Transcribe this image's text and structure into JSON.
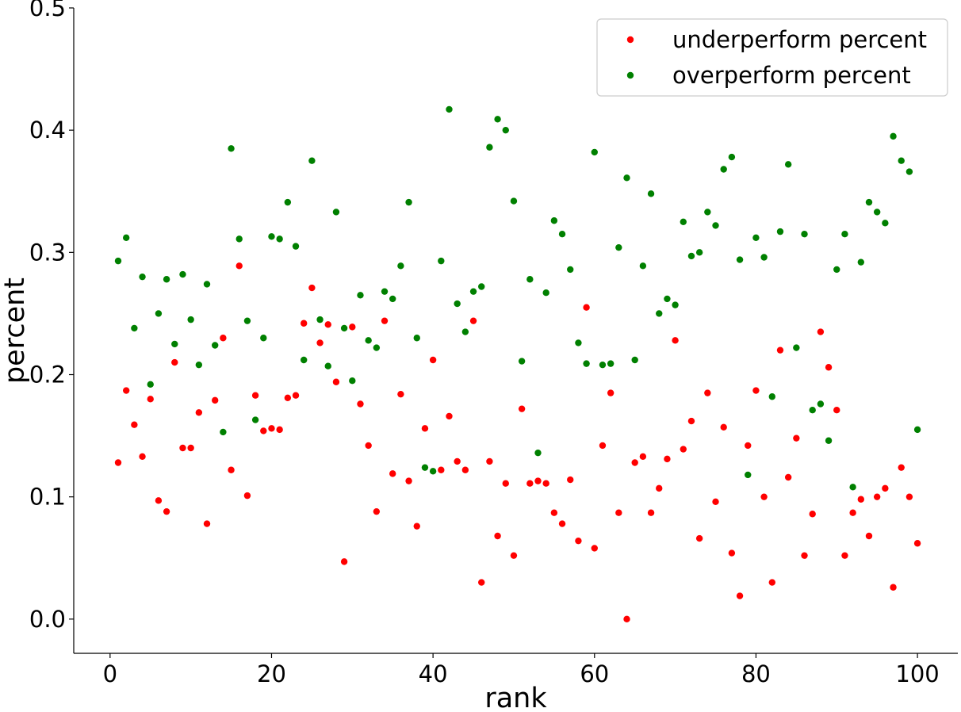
{
  "chart_data": {
    "type": "scatter",
    "xlabel": "rank",
    "ylabel": "percent",
    "xlim": [
      -4.5,
      105
    ],
    "ylim": [
      -0.028,
      0.5
    ],
    "xticks": [
      0,
      20,
      40,
      60,
      80,
      100
    ],
    "xtick_labels": [
      "0",
      "20",
      "40",
      "60",
      "80",
      "100"
    ],
    "yticks": [
      0.0,
      0.1,
      0.2,
      0.3,
      0.4,
      0.5
    ],
    "ytick_labels": [
      "0.0",
      "0.1",
      "0.2",
      "0.3",
      "0.4",
      "0.5"
    ],
    "grid": false,
    "legend_position": "top-right",
    "series": [
      {
        "name": "underperform percent",
        "color": "#ff0000",
        "points": [
          [
            1,
            0.128
          ],
          [
            2,
            0.187
          ],
          [
            3,
            0.159
          ],
          [
            4,
            0.133
          ],
          [
            5,
            0.18
          ],
          [
            6,
            0.097
          ],
          [
            7,
            0.088
          ],
          [
            8,
            0.21
          ],
          [
            9,
            0.14
          ],
          [
            10,
            0.14
          ],
          [
            11,
            0.169
          ],
          [
            12,
            0.078
          ],
          [
            13,
            0.179
          ],
          [
            14,
            0.23
          ],
          [
            15,
            0.122
          ],
          [
            16,
            0.289
          ],
          [
            17,
            0.101
          ],
          [
            18,
            0.183
          ],
          [
            19,
            0.154
          ],
          [
            20,
            0.156
          ],
          [
            21,
            0.155
          ],
          [
            22,
            0.181
          ],
          [
            23,
            0.183
          ],
          [
            24,
            0.242
          ],
          [
            25,
            0.271
          ],
          [
            26,
            0.226
          ],
          [
            27,
            0.241
          ],
          [
            28,
            0.194
          ],
          [
            29,
            0.047
          ],
          [
            30,
            0.239
          ],
          [
            31,
            0.176
          ],
          [
            32,
            0.142
          ],
          [
            33,
            0.088
          ],
          [
            34,
            0.244
          ],
          [
            35,
            0.119
          ],
          [
            36,
            0.184
          ],
          [
            37,
            0.113
          ],
          [
            38,
            0.076
          ],
          [
            39,
            0.156
          ],
          [
            40,
            0.212
          ],
          [
            41,
            0.122
          ],
          [
            42,
            0.166
          ],
          [
            43,
            0.129
          ],
          [
            44,
            0.122
          ],
          [
            45,
            0.244
          ],
          [
            46,
            0.03
          ],
          [
            47,
            0.129
          ],
          [
            48,
            0.068
          ],
          [
            49,
            0.111
          ],
          [
            50,
            0.052
          ],
          [
            51,
            0.172
          ],
          [
            52,
            0.111
          ],
          [
            53,
            0.113
          ],
          [
            54,
            0.111
          ],
          [
            55,
            0.087
          ],
          [
            56,
            0.078
          ],
          [
            57,
            0.114
          ],
          [
            58,
            0.064
          ],
          [
            59,
            0.255
          ],
          [
            60,
            0.058
          ],
          [
            61,
            0.142
          ],
          [
            62,
            0.185
          ],
          [
            63,
            0.087
          ],
          [
            64,
            0.0
          ],
          [
            65,
            0.128
          ],
          [
            66,
            0.133
          ],
          [
            67,
            0.087
          ],
          [
            68,
            0.107
          ],
          [
            69,
            0.131
          ],
          [
            70,
            0.228
          ],
          [
            71,
            0.139
          ],
          [
            72,
            0.162
          ],
          [
            73,
            0.066
          ],
          [
            74,
            0.185
          ],
          [
            75,
            0.096
          ],
          [
            76,
            0.157
          ],
          [
            77,
            0.054
          ],
          [
            78,
            0.019
          ],
          [
            79,
            0.142
          ],
          [
            80,
            0.187
          ],
          [
            81,
            0.1
          ],
          [
            82,
            0.03
          ],
          [
            83,
            0.22
          ],
          [
            84,
            0.116
          ],
          [
            85,
            0.148
          ],
          [
            86,
            0.052
          ],
          [
            87,
            0.086
          ],
          [
            88,
            0.235
          ],
          [
            89,
            0.206
          ],
          [
            90,
            0.171
          ],
          [
            91,
            0.052
          ],
          [
            92,
            0.087
          ],
          [
            93,
            0.098
          ],
          [
            94,
            0.068
          ],
          [
            95,
            0.1
          ],
          [
            96,
            0.107
          ],
          [
            97,
            0.026
          ],
          [
            98,
            0.124
          ],
          [
            99,
            0.1
          ],
          [
            100,
            0.062
          ]
        ]
      },
      {
        "name": "overperform percent",
        "color": "#008000",
        "points": [
          [
            1,
            0.293
          ],
          [
            2,
            0.312
          ],
          [
            3,
            0.238
          ],
          [
            4,
            0.28
          ],
          [
            5,
            0.192
          ],
          [
            6,
            0.25
          ],
          [
            7,
            0.278
          ],
          [
            8,
            0.225
          ],
          [
            9,
            0.282
          ],
          [
            10,
            0.245
          ],
          [
            11,
            0.208
          ],
          [
            12,
            0.274
          ],
          [
            13,
            0.224
          ],
          [
            14,
            0.153
          ],
          [
            15,
            0.385
          ],
          [
            16,
            0.311
          ],
          [
            17,
            0.244
          ],
          [
            18,
            0.163
          ],
          [
            19,
            0.23
          ],
          [
            20,
            0.313
          ],
          [
            21,
            0.311
          ],
          [
            22,
            0.341
          ],
          [
            23,
            0.305
          ],
          [
            24,
            0.212
          ],
          [
            25,
            0.375
          ],
          [
            26,
            0.245
          ],
          [
            27,
            0.207
          ],
          [
            28,
            0.333
          ],
          [
            29,
            0.238
          ],
          [
            30,
            0.195
          ],
          [
            31,
            0.265
          ],
          [
            32,
            0.228
          ],
          [
            33,
            0.222
          ],
          [
            34,
            0.268
          ],
          [
            35,
            0.262
          ],
          [
            36,
            0.289
          ],
          [
            37,
            0.341
          ],
          [
            38,
            0.23
          ],
          [
            39,
            0.124
          ],
          [
            40,
            0.121
          ],
          [
            41,
            0.293
          ],
          [
            42,
            0.417
          ],
          [
            43,
            0.258
          ],
          [
            44,
            0.235
          ],
          [
            45,
            0.268
          ],
          [
            46,
            0.272
          ],
          [
            47,
            0.386
          ],
          [
            48,
            0.409
          ],
          [
            49,
            0.4
          ],
          [
            50,
            0.342
          ],
          [
            51,
            0.211
          ],
          [
            52,
            0.278
          ],
          [
            53,
            0.136
          ],
          [
            54,
            0.267
          ],
          [
            55,
            0.326
          ],
          [
            56,
            0.315
          ],
          [
            57,
            0.286
          ],
          [
            58,
            0.226
          ],
          [
            59,
            0.209
          ],
          [
            60,
            0.382
          ],
          [
            61,
            0.208
          ],
          [
            62,
            0.209
          ],
          [
            63,
            0.304
          ],
          [
            64,
            0.361
          ],
          [
            65,
            0.212
          ],
          [
            66,
            0.289
          ],
          [
            67,
            0.348
          ],
          [
            68,
            0.25
          ],
          [
            69,
            0.262
          ],
          [
            70,
            0.257
          ],
          [
            71,
            0.325
          ],
          [
            72,
            0.297
          ],
          [
            73,
            0.3
          ],
          [
            74,
            0.333
          ],
          [
            75,
            0.322
          ],
          [
            76,
            0.368
          ],
          [
            77,
            0.378
          ],
          [
            78,
            0.294
          ],
          [
            79,
            0.118
          ],
          [
            80,
            0.312
          ],
          [
            81,
            0.296
          ],
          [
            82,
            0.182
          ],
          [
            83,
            0.317
          ],
          [
            84,
            0.372
          ],
          [
            85,
            0.222
          ],
          [
            86,
            0.315
          ],
          [
            87,
            0.171
          ],
          [
            88,
            0.176
          ],
          [
            89,
            0.146
          ],
          [
            90,
            0.286
          ],
          [
            91,
            0.315
          ],
          [
            92,
            0.108
          ],
          [
            93,
            0.292
          ],
          [
            94,
            0.341
          ],
          [
            95,
            0.333
          ],
          [
            96,
            0.324
          ],
          [
            97,
            0.395
          ],
          [
            98,
            0.375
          ],
          [
            99,
            0.366
          ],
          [
            100,
            0.155
          ]
        ]
      }
    ]
  }
}
